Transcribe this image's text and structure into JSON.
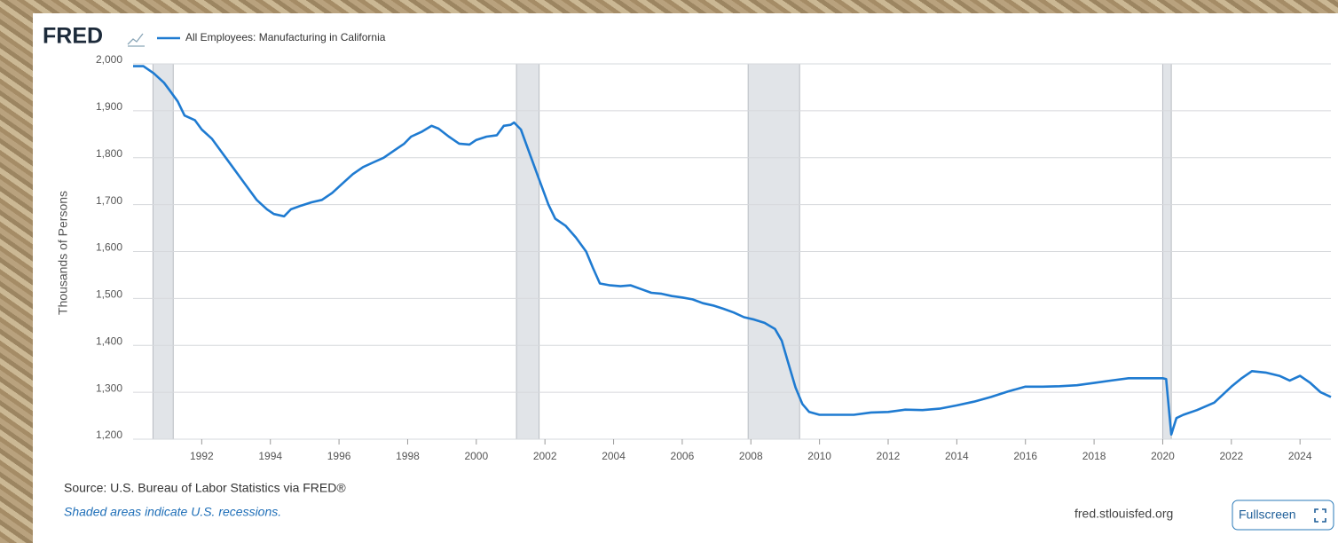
{
  "brand": "FRED",
  "chart_data": {
    "type": "line",
    "y_label": "Thousands of Persons",
    "x": [
      1990.0,
      1990.3,
      1990.6,
      1990.9,
      1991.1,
      1991.3,
      1991.5,
      1991.8,
      1992.0,
      1992.3,
      1992.6,
      1992.9,
      1993.1,
      1993.3,
      1993.6,
      1993.9,
      1994.1,
      1994.4,
      1994.6,
      1994.9,
      1995.2,
      1995.5,
      1995.8,
      1996.1,
      1996.4,
      1996.7,
      1997.0,
      1997.3,
      1997.6,
      1997.9,
      1998.1,
      1998.4,
      1998.7,
      1998.9,
      1999.2,
      1999.5,
      1999.8,
      2000.0,
      2000.3,
      2000.6,
      2000.8,
      2001.0,
      2001.1,
      2001.3,
      2001.5,
      2001.8,
      2002.1,
      2002.3,
      2002.6,
      2002.9,
      2003.2,
      2003.4,
      2003.6,
      2003.9,
      2004.2,
      2004.5,
      2004.8,
      2005.1,
      2005.4,
      2005.7,
      2006.0,
      2006.3,
      2006.6,
      2006.9,
      2007.2,
      2007.5,
      2007.8,
      2008.1,
      2008.4,
      2008.7,
      2008.9,
      2009.1,
      2009.3,
      2009.5,
      2009.7,
      2010.0,
      2010.5,
      2011.0,
      2011.5,
      2012.0,
      2012.5,
      2013.0,
      2013.5,
      2014.0,
      2014.5,
      2015.0,
      2015.5,
      2016.0,
      2016.5,
      2017.0,
      2017.5,
      2018.0,
      2018.5,
      2019.0,
      2019.5,
      2020.0,
      2020.1,
      2020.25,
      2020.4,
      2020.6,
      2021.0,
      2021.5,
      2022.0,
      2022.3,
      2022.6,
      2023.0,
      2023.4,
      2023.7,
      2024.0,
      2024.3,
      2024.6,
      2024.9
    ],
    "series": [
      {
        "name": "All Employees: Manufacturing in California",
        "color": "#1f7bd1",
        "values": [
          1995,
          1995,
          1980,
          1960,
          1940,
          1920,
          1890,
          1880,
          1860,
          1840,
          1810,
          1780,
          1760,
          1740,
          1710,
          1690,
          1680,
          1675,
          1690,
          1698,
          1705,
          1710,
          1725,
          1745,
          1765,
          1780,
          1790,
          1800,
          1815,
          1830,
          1845,
          1855,
          1868,
          1862,
          1845,
          1830,
          1828,
          1838,
          1845,
          1848,
          1868,
          1870,
          1875,
          1860,
          1820,
          1760,
          1700,
          1670,
          1655,
          1630,
          1600,
          1565,
          1532,
          1528,
          1526,
          1528,
          1520,
          1512,
          1510,
          1505,
          1502,
          1498,
          1490,
          1485,
          1478,
          1470,
          1460,
          1455,
          1448,
          1435,
          1410,
          1360,
          1310,
          1275,
          1258,
          1252,
          1252,
          1252,
          1257,
          1258,
          1263,
          1262,
          1265,
          1272,
          1280,
          1290,
          1302,
          1312,
          1312,
          1313,
          1315,
          1320,
          1325,
          1330,
          1330,
          1330,
          1328,
          1210,
          1245,
          1252,
          1262,
          1278,
          1312,
          1330,
          1345,
          1342,
          1335,
          1325,
          1335,
          1320,
          1300,
          1290
        ]
      }
    ],
    "recessions": [
      {
        "start": 1990.58,
        "end": 1991.17
      },
      {
        "start": 2001.17,
        "end": 2001.83
      },
      {
        "start": 2007.92,
        "end": 2009.42
      },
      {
        "start": 2020.0,
        "end": 2020.25
      }
    ],
    "xlim": [
      1990,
      2024.9
    ],
    "xticks": [
      1992,
      1994,
      1996,
      1998,
      2000,
      2002,
      2004,
      2006,
      2008,
      2010,
      2012,
      2014,
      2016,
      2018,
      2020,
      2022,
      2024
    ],
    "ylim": [
      1200,
      2000
    ],
    "yticks": [
      {
        "value": 1200,
        "label": "1,200"
      },
      {
        "value": 1300,
        "label": "1,300"
      },
      {
        "value": 1400,
        "label": "1,400"
      },
      {
        "value": 1500,
        "label": "1,500"
      },
      {
        "value": 1600,
        "label": "1,600"
      },
      {
        "value": 1700,
        "label": "1,700"
      },
      {
        "value": 1800,
        "label": "1,800"
      },
      {
        "value": 1900,
        "label": "1,900"
      },
      {
        "value": 2000,
        "label": "2,000"
      }
    ],
    "grid": true
  },
  "footer": {
    "source": "Source: U.S. Bureau of Labor Statistics via FRED®",
    "note": "Shaded areas indicate U.S. recessions.",
    "site": "fred.stlouisfed.org",
    "button": "Fullscreen"
  }
}
